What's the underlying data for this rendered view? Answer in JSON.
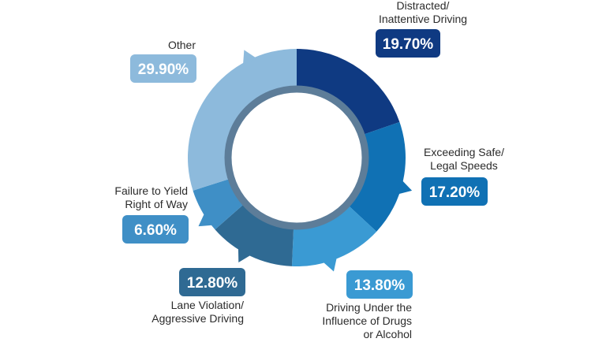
{
  "chart_data": {
    "type": "pie",
    "variant": "donut",
    "title": "",
    "slices": [
      {
        "label_lines": [
          "Distracted/",
          "Inattentive Driving"
        ],
        "value": 19.7,
        "display": "19.70%",
        "color": "#0f3a82"
      },
      {
        "label_lines": [
          "Exceeding Safe/",
          "Legal Speeds"
        ],
        "value": 17.2,
        "display": "17.20%",
        "color": "#1071b4"
      },
      {
        "label_lines": [
          "Driving Under the",
          "Influence of Drugs",
          "or Alcohol"
        ],
        "value": 13.8,
        "display": "13.80%",
        "color": "#3a9ad3"
      },
      {
        "label_lines": [
          "Lane Violation/",
          "Aggressive Driving"
        ],
        "value": 12.8,
        "display": "12.80%",
        "color": "#2f6a93"
      },
      {
        "label_lines": [
          "Failure to Yield",
          "Right of Way"
        ],
        "value": 6.6,
        "display": "6.60%",
        "color": "#3f8fc6"
      },
      {
        "label_lines": [
          "Other"
        ],
        "value": 29.9,
        "display": "29.90%",
        "color": "#8dbadc"
      }
    ],
    "inner_ring_color": "#5d7d99"
  }
}
